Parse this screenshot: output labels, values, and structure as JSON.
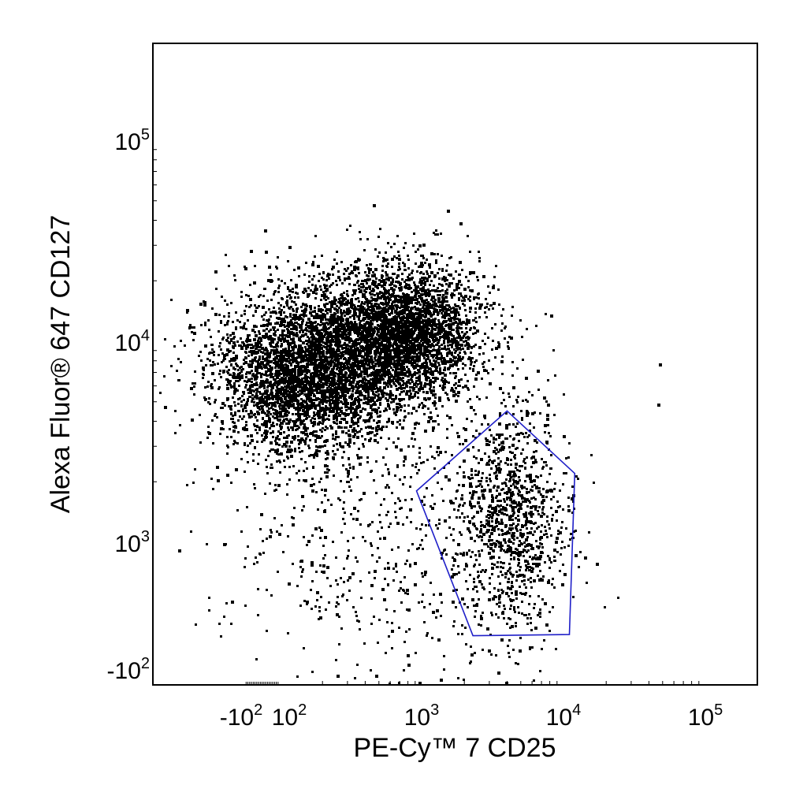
{
  "chart_data": {
    "type": "scatter",
    "title": "",
    "xlabel": "PE-Cy™ 7 CD25",
    "ylabel": "Alexa Fluor® 647 CD127",
    "x_scale": "biexponential",
    "y_scale": "biexponential",
    "grid": false,
    "legend": "none",
    "point_color": "#000000",
    "gate_color": "#1f1fc8",
    "x_ticks": [
      {
        "value": -100,
        "base": "-10",
        "exp": "2"
      },
      {
        "value": 100,
        "base": "10",
        "exp": "2"
      },
      {
        "value": 1000,
        "base": "10",
        "exp": "3"
      },
      {
        "value": 10000,
        "base": "10",
        "exp": "4"
      },
      {
        "value": 100000,
        "base": "10",
        "exp": "5"
      }
    ],
    "y_ticks": [
      {
        "value": -100,
        "base": "-10",
        "exp": "2"
      },
      {
        "value": 1000,
        "base": "10",
        "exp": "3"
      },
      {
        "value": 10000,
        "base": "10",
        "exp": "4"
      },
      {
        "value": 100000,
        "base": "10",
        "exp": "5"
      }
    ],
    "populations": [
      {
        "cx": 150,
        "cy": 7000,
        "sx": 0.32,
        "sy": 0.2,
        "n": 3600
      },
      {
        "cx": 700,
        "cy": 11000,
        "sx": 0.28,
        "sy": 0.17,
        "n": 3400
      },
      {
        "cx": 4000,
        "cy": 1300,
        "sx": 0.2,
        "sy": 0.28,
        "n": 1100
      },
      {
        "cx": 400,
        "cy": 1100,
        "sx": 0.55,
        "sy": 0.4,
        "n": 550
      }
    ],
    "outlier_points": [
      [
        47000,
        7800
      ],
      [
        46000,
        4900
      ],
      [
        12000,
        900
      ],
      [
        14000,
        880
      ],
      [
        17000,
        820
      ],
      [
        10,
        36000
      ],
      [
        450,
        48000
      ],
      [
        1500,
        45000
      ]
    ],
    "gate": {
      "name": "",
      "vertices": [
        [
          920,
          1800
        ],
        [
          4000,
          4500
        ],
        [
          12000,
          2200
        ],
        [
          11000,
          200
        ],
        [
          2300,
          190
        ]
      ]
    }
  }
}
